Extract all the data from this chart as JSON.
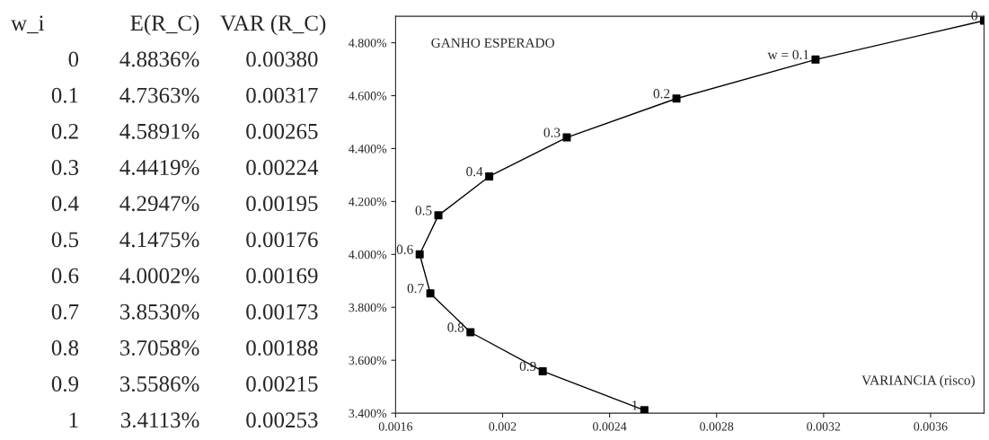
{
  "chart_data": {
    "type": "line",
    "xlabel": "VARIANCIA (risco)",
    "ylabel": "GANHO ESPERADO",
    "x": [
      0.0038,
      0.00317,
      0.00265,
      0.00224,
      0.00195,
      0.00176,
      0.00169,
      0.00173,
      0.00188,
      0.00215,
      0.00253
    ],
    "values": [
      4.8836,
      4.7363,
      4.5891,
      4.4419,
      4.2947,
      4.1475,
      4.0002,
      3.853,
      3.7058,
      3.5586,
      3.4113
    ],
    "color": "#000000",
    "marker": "square",
    "line_style": "solid",
    "grid": false,
    "xlim": [
      0.0016,
      0.0038
    ],
    "xticks": [
      0.0016,
      0.002,
      0.0024,
      0.0028,
      0.0032,
      0.0036
    ],
    "ylim": [
      3.4,
      4.9
    ],
    "yticks": [
      {
        "value": 3.4,
        "label": "3.400%"
      },
      {
        "value": 3.6,
        "label": "3.600%"
      },
      {
        "value": 3.8,
        "label": "3.800%"
      },
      {
        "value": 4.0,
        "label": "4.000%"
      },
      {
        "value": 4.2,
        "label": "4.200%"
      },
      {
        "value": 4.4,
        "label": "4.400%"
      },
      {
        "value": 4.6,
        "label": "4.600%"
      },
      {
        "value": 4.8,
        "label": "4.800%"
      }
    ],
    "annotations": [
      {
        "text": "0",
        "x": 0.0038,
        "y": 4.8836
      },
      {
        "text": "w = 0.1",
        "x": 0.00317,
        "y": 4.7363
      },
      {
        "text": "0.2",
        "x": 0.00265,
        "y": 4.5891
      },
      {
        "text": "0.3",
        "x": 0.00224,
        "y": 4.4419
      },
      {
        "text": "0.4",
        "x": 0.00195,
        "y": 4.2947
      },
      {
        "text": "0.5",
        "x": 0.00176,
        "y": 4.1475
      },
      {
        "text": "0.6",
        "x": 0.00169,
        "y": 4.0002
      },
      {
        "text": "0.7",
        "x": 0.00173,
        "y": 3.853
      },
      {
        "text": "0.8",
        "x": 0.00188,
        "y": 3.7058
      },
      {
        "text": "0.9",
        "x": 0.00215,
        "y": 3.5586
      },
      {
        "text": "1",
        "x": 0.00253,
        "y": 3.4113
      },
      "w_i",
      "E(R_C)",
      "VAR (R_C)",
      "0",
      "4.8836%",
      "0.00380",
      "0.1",
      "4.7363%",
      "0.00317",
      "0.2",
      "4.5891%",
      "0.00265",
      "0.3",
      "4.4419%",
      "0.00224",
      "0.4",
      "4.2947%",
      "0.00195",
      "0.5",
      "4.1475%",
      "0.00176",
      "0.6",
      "4.0002%",
      "0.00169",
      "0.7",
      "3.8530%",
      "0.00173",
      "0.8",
      "3.7058%",
      "0.00188",
      "0.9",
      "3.5586%",
      "0.00215",
      "1",
      "3.4113%",
      "0.00253"
    ]
  }
}
